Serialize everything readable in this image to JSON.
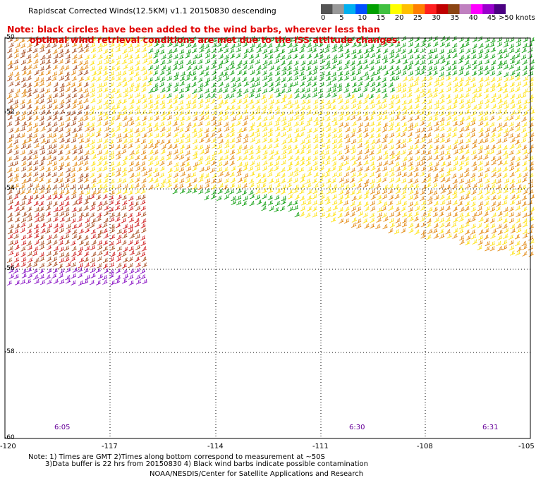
{
  "title": "Rapidscat Corrected Winds(12.5KM) v1.1 20150830 descending",
  "note": {
    "line1": "Note: black circles have been added to the wind barbs, wherever less than",
    "line2": "optimal wind retrieval conditions are met due to the ISS attitude changes."
  },
  "legend": {
    "unit_label": ">50 knots",
    "labels": [
      "0",
      "5",
      "10",
      "15",
      "20",
      "25",
      "30",
      "35",
      "40",
      "45"
    ],
    "colors": [
      "#555555",
      "#999999",
      "#00b0f0",
      "#0050ff",
      "#00a000",
      "#40c040",
      "#ffff00",
      "#ffc000",
      "#ff7f00",
      "#ff2020",
      "#c00000",
      "#8b4513",
      "#c080c0",
      "#ff00ff",
      "#9900cc",
      "#4b0082"
    ]
  },
  "axes": {
    "x_ticks": [
      "-120",
      "-117",
      "-114",
      "-111",
      "-108",
      "-105"
    ],
    "y_ticks": [
      "-50",
      "-52",
      "-54",
      "-56",
      "-58",
      "-60"
    ]
  },
  "times": [
    "6:05",
    "6:30",
    "6:31"
  ],
  "footer": {
    "line1": "Note: 1) Times are GMT 2)Times along bottom correspond to measurement at ~50S",
    "line2": "3)Data buffer is 22 hrs from 20150830 4) Black wind barbs indicate possible contamination",
    "line3": "NOAA/NESDIS/Center for Satellite Applications and Research"
  },
  "colors": {
    "green": "#009900",
    "yellow": "#ffe000",
    "orange": "#e08000",
    "brown": "#a04010",
    "red": "#cc1010",
    "purple": "#8000c0",
    "note_red": "#e00000"
  }
}
